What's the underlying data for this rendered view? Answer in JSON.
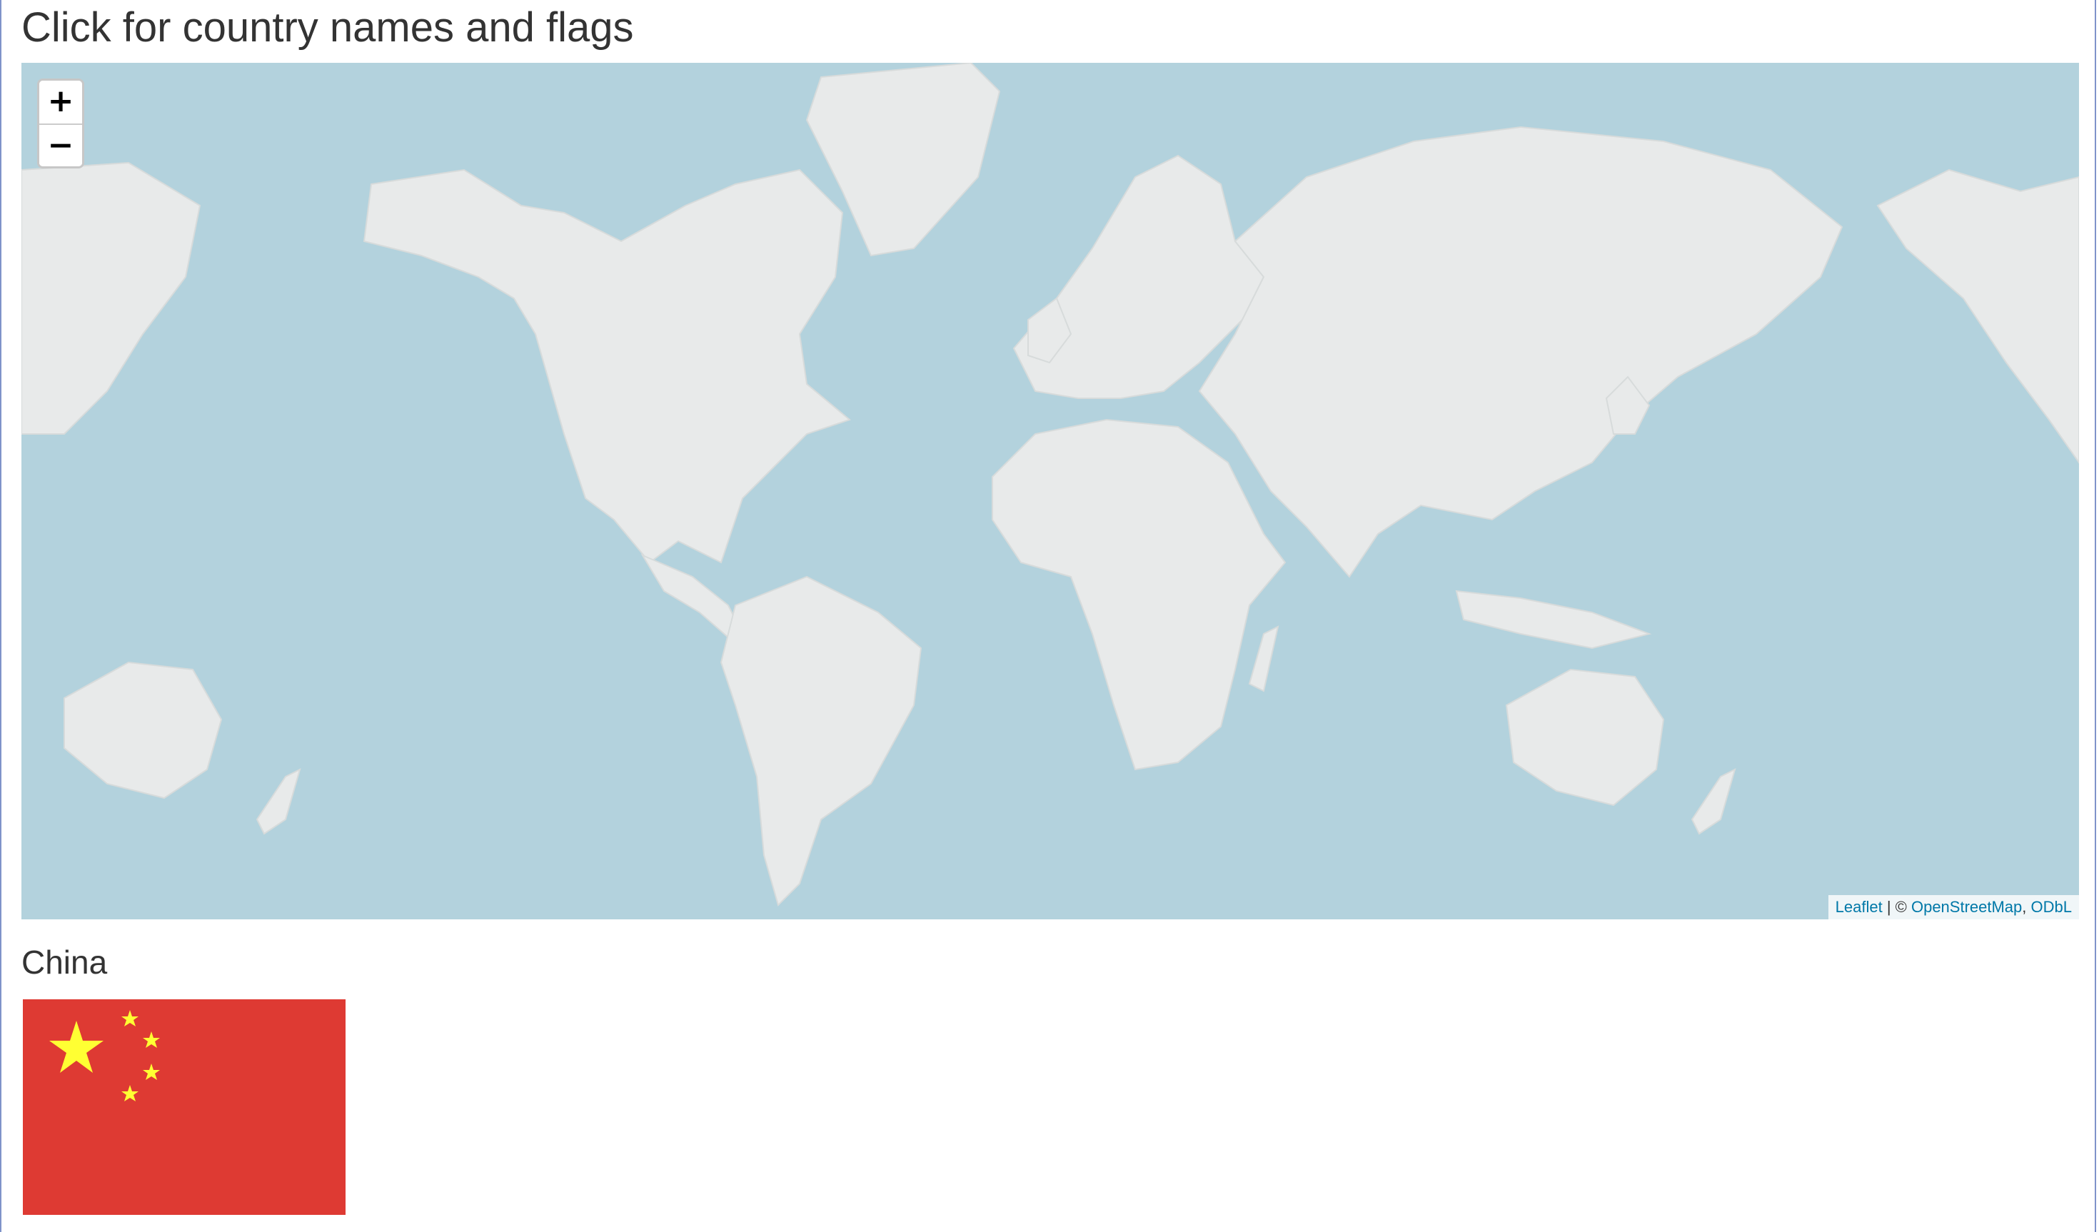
{
  "page": {
    "title": "Click for country names and flags"
  },
  "map": {
    "zoom_in_label": "+",
    "zoom_out_label": "−",
    "attribution": {
      "leaflet": "Leaflet",
      "separator": " | © ",
      "osm": "OpenStreetMap",
      "comma": ", ",
      "license": "ODbL"
    },
    "colors": {
      "water": "#b3d2dd",
      "land": "#e8eaea",
      "land_edge": "#f3efec"
    }
  },
  "selection": {
    "country_name": "China",
    "flag": {
      "icon": "china-flag",
      "red": "#de3a33",
      "yellow": "#ffff33"
    }
  }
}
